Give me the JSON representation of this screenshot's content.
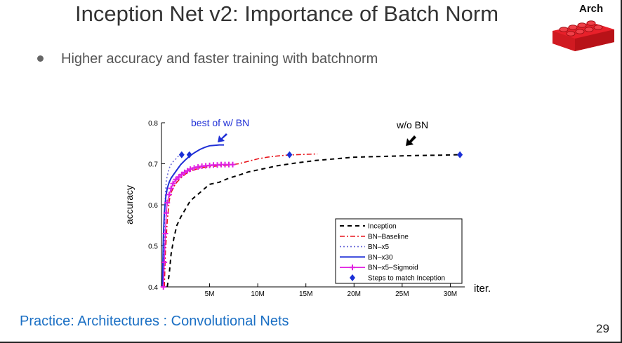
{
  "slide": {
    "title": "Inception Net v2: Importance of Batch Norm",
    "bullet": "Higher accuracy and faster training with batchnorm",
    "tag": "Arch",
    "footer": "Practice: Architectures : Convolutional Nets",
    "page_number": "29"
  },
  "colors": {
    "title": "#333333",
    "footer": "#1a6fc4",
    "brick": "#e8202a",
    "inception": "#000000",
    "bn_baseline": "#e8141b",
    "bn_x5": "#6b6bd8",
    "bn_x30": "#1f2fd6",
    "bn_x5_sigmoid": "#e020e0",
    "steps": "#1a2fd6"
  },
  "chart_data": {
    "type": "line",
    "title": "",
    "xlabel": "iter.",
    "ylabel": "accuracy",
    "xlim": [
      0,
      31.5
    ],
    "ylim": [
      0.4,
      0.8
    ],
    "x_unit": "M",
    "xticks": [
      5,
      10,
      15,
      20,
      25,
      30
    ],
    "xtick_labels": [
      "5M",
      "10M",
      "15M",
      "20M",
      "25M",
      "30M"
    ],
    "yticks": [
      0.4,
      0.5,
      0.6,
      0.7,
      0.8
    ],
    "ytick_labels": [
      "0.4",
      "0.5",
      "0.6",
      "0.7",
      "0.8"
    ],
    "series": [
      {
        "name": "Inception",
        "style": "dashed",
        "x": [
          0.6,
          0.8,
          1.0,
          1.3,
          1.6,
          2.0,
          2.5,
          3.0,
          3.5,
          4.0,
          4.5,
          5.0,
          6.0,
          7.0,
          8.0,
          9.0,
          10,
          11,
          12,
          14,
          16,
          18,
          20,
          23,
          26,
          29,
          31
        ],
        "y": [
          0.4,
          0.43,
          0.48,
          0.52,
          0.55,
          0.57,
          0.59,
          0.61,
          0.62,
          0.63,
          0.64,
          0.65,
          0.655,
          0.665,
          0.672,
          0.68,
          0.685,
          0.69,
          0.695,
          0.702,
          0.708,
          0.712,
          0.716,
          0.718,
          0.72,
          0.721,
          0.722
        ]
      },
      {
        "name": "BN–Baseline",
        "style": "dashdot",
        "x": [
          0.3,
          0.4,
          0.6,
          0.8,
          1.0,
          1.3,
          1.6,
          2.0,
          2.5,
          3.0,
          4.0,
          5.0,
          6.0,
          7.0,
          8.0,
          9.0,
          10.0,
          11.0,
          12.0,
          13.0,
          14.0,
          15.0,
          16.2
        ],
        "y": [
          0.4,
          0.48,
          0.56,
          0.61,
          0.63,
          0.645,
          0.655,
          0.665,
          0.675,
          0.682,
          0.69,
          0.693,
          0.695,
          0.697,
          0.7,
          0.706,
          0.712,
          0.716,
          0.719,
          0.721,
          0.722,
          0.723,
          0.724
        ]
      },
      {
        "name": "BN–x5",
        "style": "dotted",
        "x": [
          0.2,
          0.3,
          0.4,
          0.5,
          0.7,
          0.9,
          1.2,
          1.5,
          1.8,
          2.2
        ],
        "y": [
          0.4,
          0.55,
          0.62,
          0.66,
          0.68,
          0.695,
          0.705,
          0.712,
          0.72,
          0.725
        ]
      },
      {
        "name": "BN–x30",
        "style": "solid",
        "x": [
          0.1,
          0.2,
          0.3,
          0.45,
          0.6,
          0.8,
          1.0,
          1.3,
          1.6,
          2.0,
          2.5,
          3.0,
          3.5,
          4.0,
          4.5,
          5.0,
          5.5,
          6.0,
          6.5
        ],
        "y": [
          0.4,
          0.52,
          0.58,
          0.62,
          0.64,
          0.655,
          0.665,
          0.675,
          0.685,
          0.698,
          0.71,
          0.72,
          0.728,
          0.735,
          0.74,
          0.744,
          0.745,
          0.746,
          0.746
        ]
      },
      {
        "name": "BN–x5–Sigmoid",
        "style": "plus",
        "x": [
          0.2,
          0.3,
          0.4,
          0.5,
          0.6,
          0.8,
          1.0,
          1.2,
          1.5,
          1.8,
          2.1,
          2.4,
          2.7,
          3.0,
          3.4,
          3.8,
          4.2,
          4.6,
          5.0,
          5.4,
          5.8,
          6.2,
          6.6,
          7.0,
          7.4
        ],
        "y": [
          0.4,
          0.46,
          0.53,
          0.58,
          0.605,
          0.625,
          0.64,
          0.652,
          0.662,
          0.668,
          0.674,
          0.679,
          0.683,
          0.687,
          0.69,
          0.692,
          0.694,
          0.695,
          0.696,
          0.697,
          0.697,
          0.698,
          0.698,
          0.698,
          0.698
        ]
      },
      {
        "name": "Steps to match Inception",
        "style": "diamond",
        "x": [
          2.1,
          2.9,
          13.3,
          31.0
        ],
        "y": [
          0.722,
          0.722,
          0.722,
          0.722
        ]
      }
    ],
    "annotations": [
      {
        "text": "best of w/ BN"
      },
      {
        "text": "w/o BN"
      }
    ],
    "legend_position": "bottom-right"
  }
}
